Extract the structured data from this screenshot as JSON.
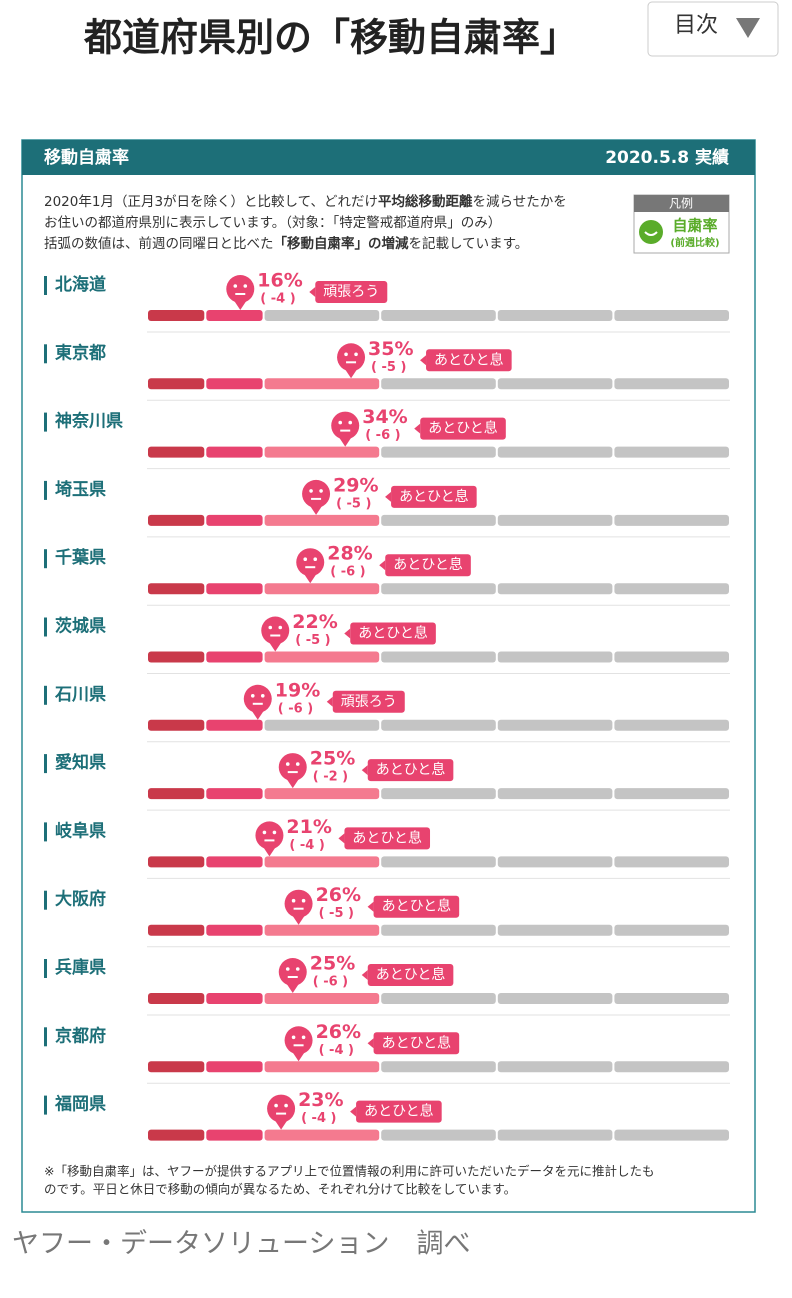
{
  "page_title": "都道府県別の「移動自粛率」",
  "toc_button": "目次",
  "chart_data": {
    "type": "bar",
    "title": "移動自粛率",
    "date": "2020.5.8 実績",
    "description": [
      [
        "2020年1月（正月3が日を除く）と比較して、どれだけ",
        "平均総移動距離",
        "を減らせたかを"
      ],
      [
        "お住いの都道府県別に表示しています。（対象：「特定警戒都道府県」のみ）"
      ],
      [
        "括弧の数値は、前週の同曜日と比べた",
        "「移動自粛率」の増減",
        "を記載しています。"
      ]
    ],
    "legend": {
      "title": "凡例",
      "label": "自粛率",
      "sublabel": "(前週比較)"
    },
    "categories": [
      "北海道",
      "東京都",
      "神奈川県",
      "埼玉県",
      "千葉県",
      "茨城県",
      "石川県",
      "愛知県",
      "岐阜県",
      "大阪府",
      "兵庫県",
      "京都府",
      "福岡県"
    ],
    "values": [
      16,
      35,
      34,
      29,
      28,
      22,
      19,
      25,
      21,
      26,
      25,
      26,
      23
    ],
    "value_labels": [
      "16%",
      "35%",
      "34%",
      "29%",
      "28%",
      "22%",
      "19%",
      "25%",
      "21%",
      "26%",
      "25%",
      "26%",
      "23%"
    ],
    "change_labels": [
      "( -4 )",
      "( -5 )",
      "( -6 )",
      "( -5 )",
      "( -6 )",
      "( -5 )",
      "( -6 )",
      "( -2 )",
      "( -4 )",
      "( -5 )",
      "( -6 )",
      "( -4 )",
      "( -4 )"
    ],
    "statuses": [
      "頑張ろう",
      "あとひと息",
      "あとひと息",
      "あとひと息",
      "あとひと息",
      "あとひと息",
      "頑張ろう",
      "あとひと息",
      "あとひと息",
      "あとひと息",
      "あとひと息",
      "あとひと息",
      "あとひと息"
    ],
    "xlim": [
      0,
      100
    ],
    "color": "#e8436f",
    "footnote": [
      "※「移動自粛率」は、ヤフーが提供するアプリ上で位置情報の利用に許可いただいたデータを元に推計したも",
      "のです。平日と休日で移動の傾向が異なるため、それぞれ分けて比較をしています。"
    ]
  },
  "source": "ヤフー・データソリューション　調べ"
}
